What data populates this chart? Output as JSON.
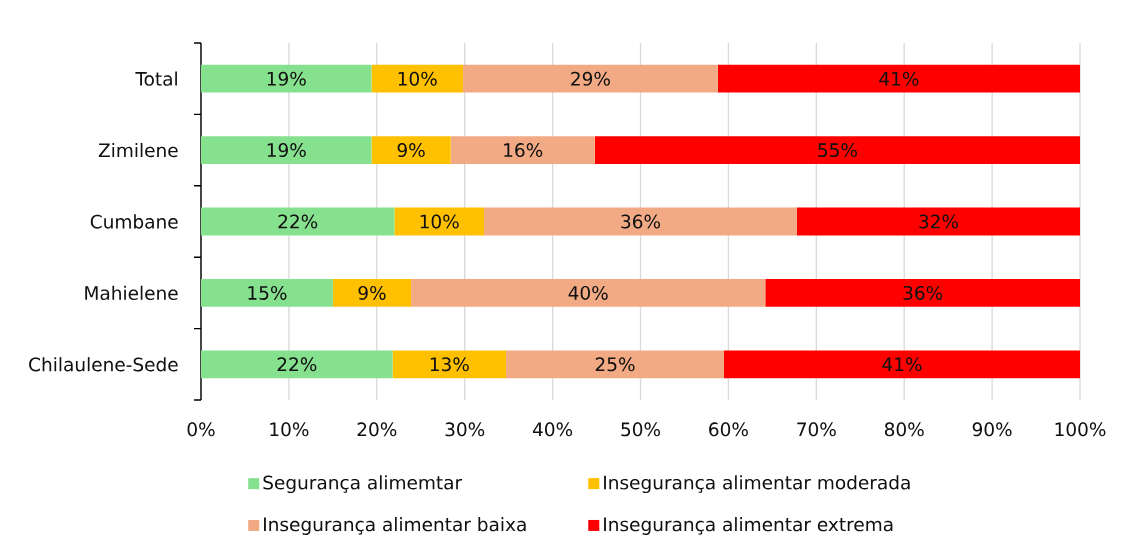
{
  "chart_data": {
    "type": "bar",
    "orientation": "horizontal",
    "stacked": true,
    "categories": [
      "Total",
      "Zimilene",
      "Cumbane",
      "Mahielene",
      "Chilaulene-Sede"
    ],
    "series": [
      {
        "name": "Segurança alimemtar",
        "color": "#86E18F",
        "values": [
          19.4,
          19.4,
          22.0,
          15.0,
          21.8
        ],
        "value_labels": [
          "19%",
          "19%",
          "22%",
          "15%",
          "22%"
        ]
      },
      {
        "name": "Insegurança alimentar moderada",
        "color": "#FFC000",
        "values": [
          10.4,
          9.0,
          10.2,
          8.9,
          12.9
        ],
        "value_labels": [
          "10%",
          "9%",
          "10%",
          "9%",
          "13%"
        ]
      },
      {
        "name": "Insegurança alimentar baixa",
        "color": "#F2AA84",
        "values": [
          29.0,
          16.4,
          35.6,
          40.3,
          24.8
        ],
        "value_labels": [
          "29%",
          "16%",
          "36%",
          "40%",
          "25%"
        ]
      },
      {
        "name": "Insegurança alimentar extrema",
        "color": "#FF0000",
        "values": [
          41.2,
          55.2,
          32.2,
          35.8,
          40.5
        ],
        "value_labels": [
          "41%",
          "55%",
          "32%",
          "36%",
          "41%"
        ]
      }
    ],
    "xlim": [
      0,
      100
    ],
    "xticks": [
      {
        "value": 0,
        "label": "0%"
      },
      {
        "value": 10,
        "label": "10%"
      },
      {
        "value": 20,
        "label": "20%"
      },
      {
        "value": 30,
        "label": "30%"
      },
      {
        "value": 40,
        "label": "40%"
      },
      {
        "value": 50,
        "label": "50%"
      },
      {
        "value": 60,
        "label": "60%"
      },
      {
        "value": 70,
        "label": "70%"
      },
      {
        "value": 80,
        "label": "80%"
      },
      {
        "value": 90,
        "label": "90%"
      },
      {
        "value": 100,
        "label": "100%"
      }
    ],
    "grid": "x",
    "legend": "bottom"
  }
}
